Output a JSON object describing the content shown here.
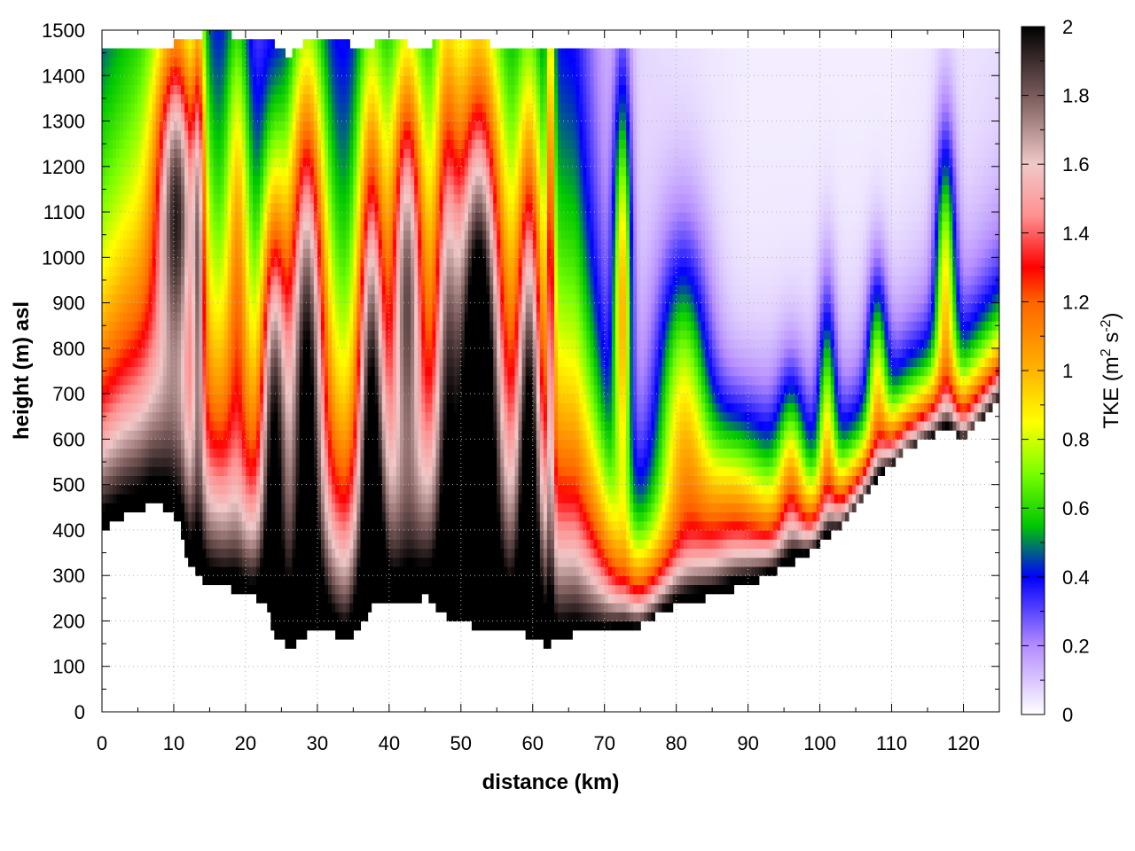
{
  "chart_data": {
    "type": "heatmap",
    "title": "",
    "xlabel": "distance (km)",
    "ylabel": "height (m) asl",
    "colorbar_label": "TKE (m",
    "colorbar_label_sup1": "2",
    "colorbar_label_mid": " s",
    "colorbar_label_sup2": "-2",
    "colorbar_label_end": ")",
    "xlim": [
      0,
      125
    ],
    "ylim": [
      0,
      1500
    ],
    "clim": [
      0,
      2
    ],
    "x_ticks": [
      "0",
      "10",
      "20",
      "30",
      "40",
      "50",
      "60",
      "70",
      "80",
      "90",
      "100",
      "110",
      "120"
    ],
    "y_ticks": [
      "0",
      "100",
      "200",
      "300",
      "400",
      "500",
      "600",
      "700",
      "800",
      "900",
      "1000",
      "1100",
      "1200",
      "1300",
      "1400",
      "1500"
    ],
    "colorbar_ticks": [
      "0",
      "0.2",
      "0.4",
      "0.6",
      "0.8",
      "1",
      "1.2",
      "1.4",
      "1.6",
      "1.8",
      "2"
    ],
    "grid": true,
    "colormap_stops": [
      {
        "v": 0.0,
        "color": "#ffffff"
      },
      {
        "v": 0.2,
        "color": "#b48cff"
      },
      {
        "v": 0.4,
        "color": "#0000ff"
      },
      {
        "v": 0.55,
        "color": "#00c800"
      },
      {
        "v": 0.7,
        "color": "#78ff00"
      },
      {
        "v": 0.85,
        "color": "#ffff00"
      },
      {
        "v": 1.0,
        "color": "#ffb400"
      },
      {
        "v": 1.2,
        "color": "#ff6400"
      },
      {
        "v": 1.3,
        "color": "#ff0000"
      },
      {
        "v": 1.45,
        "color": "#ff9090"
      },
      {
        "v": 1.6,
        "color": "#f0c8c8"
      },
      {
        "v": 1.8,
        "color": "#7a5a5a"
      },
      {
        "v": 2.0,
        "color": "#000000"
      }
    ],
    "terrain": [
      {
        "x": 0,
        "y": 400
      },
      {
        "x": 3,
        "y": 430
      },
      {
        "x": 5,
        "y": 440
      },
      {
        "x": 7,
        "y": 460
      },
      {
        "x": 9,
        "y": 445
      },
      {
        "x": 11,
        "y": 410
      },
      {
        "x": 12,
        "y": 330
      },
      {
        "x": 14,
        "y": 290
      },
      {
        "x": 16,
        "y": 285
      },
      {
        "x": 19,
        "y": 265
      },
      {
        "x": 21,
        "y": 255
      },
      {
        "x": 23,
        "y": 230
      },
      {
        "x": 24,
        "y": 170
      },
      {
        "x": 26,
        "y": 140
      },
      {
        "x": 28,
        "y": 165
      },
      {
        "x": 30,
        "y": 180
      },
      {
        "x": 32,
        "y": 175
      },
      {
        "x": 34,
        "y": 150
      },
      {
        "x": 36,
        "y": 190
      },
      {
        "x": 38,
        "y": 240
      },
      {
        "x": 40,
        "y": 230
      },
      {
        "x": 42,
        "y": 235
      },
      {
        "x": 45,
        "y": 255
      },
      {
        "x": 47,
        "y": 225
      },
      {
        "x": 49,
        "y": 200
      },
      {
        "x": 53,
        "y": 185
      },
      {
        "x": 57,
        "y": 180
      },
      {
        "x": 60,
        "y": 165
      },
      {
        "x": 62,
        "y": 145
      },
      {
        "x": 64,
        "y": 160
      },
      {
        "x": 66,
        "y": 175
      },
      {
        "x": 70,
        "y": 185
      },
      {
        "x": 75,
        "y": 190
      },
      {
        "x": 78,
        "y": 220
      },
      {
        "x": 80,
        "y": 235
      },
      {
        "x": 85,
        "y": 255
      },
      {
        "x": 90,
        "y": 280
      },
      {
        "x": 94,
        "y": 310
      },
      {
        "x": 98,
        "y": 345
      },
      {
        "x": 100,
        "y": 370
      },
      {
        "x": 103,
        "y": 410
      },
      {
        "x": 106,
        "y": 470
      },
      {
        "x": 109,
        "y": 530
      },
      {
        "x": 112,
        "y": 575
      },
      {
        "x": 115,
        "y": 605
      },
      {
        "x": 118,
        "y": 620
      },
      {
        "x": 120,
        "y": 600
      },
      {
        "x": 122,
        "y": 635
      },
      {
        "x": 125,
        "y": 690
      }
    ],
    "top_boundary": [
      {
        "x": 0,
        "y": 1470
      },
      {
        "x": 7,
        "y": 1450
      },
      {
        "x": 11,
        "y": 1475
      },
      {
        "x": 14,
        "y": 1490
      },
      {
        "x": 18,
        "y": 1490
      },
      {
        "x": 23,
        "y": 1480
      },
      {
        "x": 26,
        "y": 1440
      },
      {
        "x": 29,
        "y": 1480
      },
      {
        "x": 33,
        "y": 1490
      },
      {
        "x": 36,
        "y": 1450
      },
      {
        "x": 40,
        "y": 1490
      },
      {
        "x": 44,
        "y": 1460
      },
      {
        "x": 48,
        "y": 1480
      },
      {
        "x": 52,
        "y": 1475
      },
      {
        "x": 56,
        "y": 1465
      },
      {
        "x": 60,
        "y": 1460
      },
      {
        "x": 64,
        "y": 1450
      },
      {
        "x": 66,
        "y": 1455
      },
      {
        "x": 70,
        "y": 1460
      },
      {
        "x": 76,
        "y": 1460
      }
    ],
    "background_profile": [
      {
        "x": 0,
        "min": 0.25,
        "scale": 500
      },
      {
        "x": 10,
        "min": 0.25,
        "scale": 700
      },
      {
        "x": 20,
        "min": 0.15,
        "scale": 450
      },
      {
        "x": 30,
        "min": 0.2,
        "scale": 500
      },
      {
        "x": 40,
        "min": 0.25,
        "scale": 600
      },
      {
        "x": 50,
        "min": 0.25,
        "scale": 650
      },
      {
        "x": 60,
        "min": 0.25,
        "scale": 600
      },
      {
        "x": 66,
        "min": 0.2,
        "scale": 550
      },
      {
        "x": 72,
        "min": 0.08,
        "scale": 180
      },
      {
        "x": 80,
        "min": 0.05,
        "scale": 160
      },
      {
        "x": 90,
        "min": 0.03,
        "scale": 150
      },
      {
        "x": 100,
        "min": 0.03,
        "scale": 140
      },
      {
        "x": 110,
        "min": 0.03,
        "scale": 120
      },
      {
        "x": 125,
        "min": 0.05,
        "scale": 150
      }
    ],
    "cores": [
      {
        "x": 10.5,
        "y": 1150,
        "sx": 2.0,
        "sy": 250,
        "amp": 1.0
      },
      {
        "x": 13.5,
        "y": 1050,
        "sx": 0.6,
        "sy": 400,
        "amp": 0.7
      },
      {
        "x": 19,
        "y": 1050,
        "sx": 1.2,
        "sy": 400,
        "amp": 0.55
      },
      {
        "x": 24,
        "y": 700,
        "sx": 1.3,
        "sy": 350,
        "amp": 1.1
      },
      {
        "x": 28.5,
        "y": 820,
        "sx": 1.8,
        "sy": 450,
        "amp": 1.3
      },
      {
        "x": 37.5,
        "y": 750,
        "sx": 1.3,
        "sy": 450,
        "amp": 1.0
      },
      {
        "x": 42.5,
        "y": 1000,
        "sx": 1.5,
        "sy": 320,
        "amp": 1.0
      },
      {
        "x": 48,
        "y": 900,
        "sx": 1.2,
        "sy": 500,
        "amp": 0.7
      },
      {
        "x": 52.5,
        "y": 800,
        "sx": 2.2,
        "sy": 450,
        "amp": 1.4
      },
      {
        "x": 59.5,
        "y": 700,
        "sx": 1.2,
        "sy": 450,
        "amp": 1.0
      },
      {
        "x": 62.5,
        "y": 1000,
        "sx": 0.4,
        "sy": 500,
        "amp": 0.7
      },
      {
        "x": 72.5,
        "y": 900,
        "sx": 0.9,
        "sy": 330,
        "amp": 0.9
      },
      {
        "x": 81,
        "y": 650,
        "sx": 2.6,
        "sy": 260,
        "amp": 0.7
      },
      {
        "x": 88,
        "y": 450,
        "sx": 4.0,
        "sy": 160,
        "amp": 0.5
      },
      {
        "x": 96,
        "y": 520,
        "sx": 1.4,
        "sy": 160,
        "amp": 0.5
      },
      {
        "x": 101,
        "y": 650,
        "sx": 0.9,
        "sy": 200,
        "amp": 0.55
      },
      {
        "x": 108,
        "y": 750,
        "sx": 1.0,
        "sy": 160,
        "amp": 0.55
      },
      {
        "x": 117.5,
        "y": 960,
        "sx": 1.0,
        "sy": 220,
        "amp": 0.7
      }
    ]
  }
}
